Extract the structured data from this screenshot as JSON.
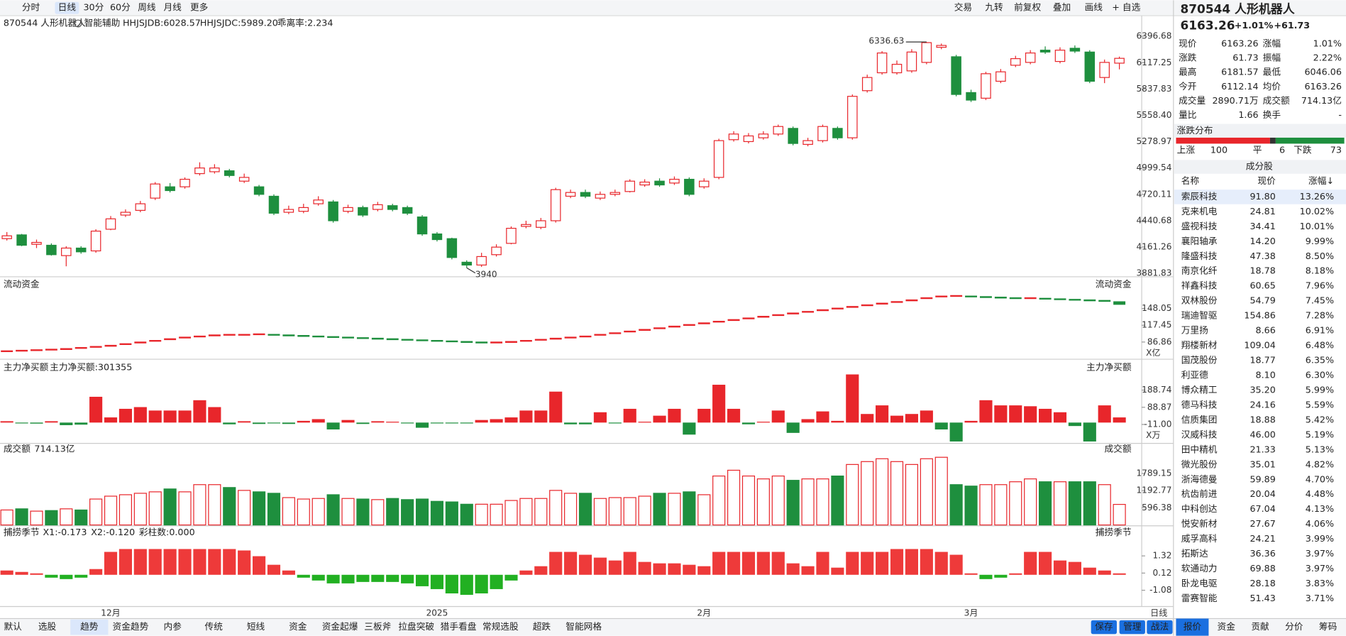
{
  "toolbar": {
    "periods": [
      "分时",
      "日线",
      "30分",
      "60分",
      "周线",
      "月线",
      "更多"
    ],
    "active": "日线",
    "tools": [
      "交易",
      "九转",
      "前复权",
      "叠加",
      "画线",
      "+ 自选"
    ]
  },
  "chart_data": [
    {
      "type": "candlestick",
      "title": "870544 人形机器人",
      "assist": "智能辅助",
      "legend": [
        {
          "text": "HHJSJDB:6028.57",
          "color": "#f08c00"
        },
        {
          "text": "HHJSJDC:5989.20",
          "color": "#e8262b"
        },
        {
          "text": "乖离率:2.234",
          "color": "#f08c00"
        }
      ],
      "up_color": "#e8262b",
      "down_color": "#1e8f3e",
      "open": [
        4250,
        4290,
        4190,
        4180,
        4070,
        4150,
        4120,
        4350,
        4500,
        4550,
        4680,
        4800,
        4800,
        4940,
        4960,
        4970,
        4860,
        4800,
        4700,
        4530,
        4540,
        4620,
        4640,
        4540,
        4580,
        4560,
        4600,
        4580,
        4480,
        4300,
        4250,
        4000,
        3970,
        4080,
        4200,
        4380,
        4370,
        4440,
        4700,
        4740,
        4680,
        4720,
        4750,
        4820,
        4860,
        4840,
        4880,
        4800,
        4900,
        5300,
        5280,
        5320,
        5360,
        5420,
        5250,
        5290,
        5420,
        5320,
        5820,
        6010,
        6010,
        6030,
        6120,
        6280,
        6180,
        5800,
        5740,
        5920,
        6090,
        6120,
        6250,
        6130,
        6270,
        6230,
        5960,
        6112.14
      ],
      "high": [
        4320,
        4300,
        4240,
        4200,
        4170,
        4170,
        4350,
        4490,
        4560,
        4650,
        4850,
        4840,
        4900,
        5060,
        5040,
        4990,
        4940,
        4820,
        4720,
        4600,
        4620,
        4700,
        4660,
        4610,
        4600,
        4640,
        4620,
        4600,
        4500,
        4320,
        4260,
        4020,
        4100,
        4190,
        4380,
        4440,
        4470,
        4790,
        4770,
        4770,
        4750,
        4770,
        4880,
        4880,
        4890,
        4910,
        4900,
        4890,
        5310,
        5390,
        5370,
        5390,
        5460,
        5440,
        5320,
        5460,
        5440,
        5780,
        5990,
        6240,
        6140,
        6260,
        6336.63,
        6320,
        6200,
        5830,
        6020,
        6050,
        6190,
        6250,
        6290,
        6280,
        6300,
        6250,
        6150,
        6181.57
      ],
      "low": [
        4230,
        4170,
        4150,
        4070,
        3956.45,
        4090,
        4100,
        4340,
        4480,
        4530,
        4660,
        4740,
        4780,
        4920,
        4940,
        4900,
        4840,
        4700,
        4500,
        4510,
        4520,
        4600,
        4420,
        4520,
        4480,
        4540,
        4540,
        4500,
        4280,
        4220,
        4030,
        3940,
        3950,
        4060,
        4190,
        4360,
        4350,
        4420,
        4680,
        4680,
        4660,
        4700,
        4740,
        4800,
        4800,
        4820,
        4700,
        4780,
        4880,
        5280,
        5260,
        5300,
        5340,
        5240,
        5230,
        5270,
        5300,
        5300,
        5800,
        5990,
        5990,
        6010,
        6100,
        6260,
        5760,
        5700,
        5720,
        5900,
        6070,
        6100,
        6210,
        6110,
        6220,
        5900,
        5900,
        6046.06
      ],
      "close": [
        4280,
        4180,
        4210,
        4080,
        4150,
        4110,
        4330,
        4460,
        4530,
        4620,
        4830,
        4760,
        4880,
        5000,
        5000,
        4920,
        4900,
        4720,
        4520,
        4560,
        4580,
        4660,
        4440,
        4580,
        4500,
        4610,
        4560,
        4520,
        4300,
        4240,
        4050,
        3970,
        4060,
        4160,
        4360,
        4400,
        4440,
        4770,
        4740,
        4700,
        4720,
        4740,
        4860,
        4850,
        4820,
        4880,
        4720,
        4860,
        5290,
        5360,
        5340,
        5360,
        5440,
        5260,
        5290,
        5440,
        5320,
        5760,
        5960,
        6220,
        6100,
        6230,
        6330,
        6300,
        5780,
        5720,
        6000,
        6020,
        6160,
        6220,
        6230,
        6250,
        6240,
        5920,
        6120,
        6163.26
      ],
      "ylim": [
        3881.83,
        6396.68
      ],
      "yticks": [
        6396.68,
        6117.25,
        5837.83,
        {
          "value": 5558.4,
          "label": "5558.40"
        },
        5278.97,
        4999.54,
        4720.11,
        4440.68,
        4161.26,
        3881.83
      ]
    },
    {
      "type": "line",
      "title": "流动资金",
      "unit": "X亿",
      "up_color": "#e8262b",
      "down_color": "#1e8f3e",
      "values": [
        70,
        71,
        72,
        73,
        74,
        76,
        78,
        80,
        83,
        86,
        89,
        92,
        95,
        97,
        99,
        100,
        100,
        101,
        100,
        99,
        98,
        97,
        96,
        95,
        94,
        93,
        92,
        91,
        90,
        89,
        88,
        87,
        86,
        86,
        87,
        89,
        91,
        93,
        95,
        97,
        100,
        103,
        106,
        109,
        112,
        115,
        118,
        121,
        124,
        127,
        130,
        133,
        136,
        139,
        142,
        145,
        148,
        151,
        154,
        157,
        160,
        163,
        167,
        170,
        171,
        170,
        169,
        168,
        167,
        167,
        166,
        165,
        164,
        163,
        162,
        158
      ],
      "ylim": [
        60,
        180
      ],
      "yticks": [
        148.05,
        117.45,
        86.86
      ]
    },
    {
      "type": "bar",
      "title": "主力净买额",
      "subtitle": "主力净买额:301355",
      "unit": "X万",
      "up_color": "#e8262b",
      "down_color": "#1e8f3e",
      "values": [
        8,
        -5,
        -6,
        8,
        -15,
        -12,
        150,
        30,
        80,
        90,
        70,
        70,
        70,
        130,
        90,
        -10,
        8,
        -8,
        -5,
        -8,
        10,
        20,
        -40,
        15,
        -8,
        8,
        5,
        -5,
        -30,
        -5,
        -5,
        -5,
        15,
        20,
        30,
        70,
        70,
        180,
        -10,
        -10,
        60,
        -5,
        80,
        5,
        40,
        80,
        -70,
        80,
        220,
        80,
        -10,
        5,
        70,
        -60,
        20,
        65,
        10,
        280,
        50,
        100,
        40,
        50,
        70,
        -40,
        -110,
        10,
        130,
        100,
        100,
        95,
        80,
        60,
        -20,
        -110,
        100,
        30
      ],
      "ylim": [
        -120,
        300
      ],
      "yticks": [
        188.74,
        88.87,
        {
          "value": -11,
          "label": "-11.00"
        }
      ]
    },
    {
      "type": "volume",
      "title": "成交额",
      "subtitle": "714.13亿",
      "values": [
        520,
        560,
        480,
        500,
        560,
        520,
        900,
        1000,
        1050,
        1100,
        1150,
        1250,
        1150,
        1400,
        1400,
        1300,
        1200,
        1150,
        1100,
        950,
        900,
        920,
        1050,
        920,
        900,
        880,
        920,
        880,
        900,
        820,
        800,
        720,
        720,
        720,
        850,
        920,
        920,
        1200,
        1100,
        1100,
        920,
        950,
        950,
        1000,
        1100,
        1100,
        1150,
        1050,
        1700,
        1900,
        1700,
        1600,
        1700,
        1550,
        1600,
        1600,
        1700,
        2100,
        2200,
        2300,
        2200,
        2100,
        2300,
        2350,
        1400,
        1350,
        1400,
        1400,
        1500,
        1600,
        1500,
        1500,
        1500,
        1500,
        1400,
        714.13
      ],
      "ylim": [
        0,
        2600
      ],
      "yticks": [
        1789.15,
        1192.77,
        596.38
      ]
    },
    {
      "type": "bar",
      "title": "捕捞季节",
      "up_color": "#ee3a3a",
      "down_color": "#22b022",
      "legend": [
        {
          "text": "X1:-0.173",
          "color": "#f08c00"
        },
        {
          "text": "X2:-0.120",
          "color": "#e020e0"
        },
        {
          "text": "彩柱数:0.000",
          "color": "#1e8f3e"
        }
      ],
      "values": [
        0.3,
        0.2,
        0.1,
        -0.2,
        -0.3,
        -0.2,
        0.4,
        1.6,
        1.8,
        1.8,
        1.8,
        1.8,
        1.8,
        1.8,
        1.8,
        1.8,
        1.7,
        1.3,
        0.7,
        0.3,
        -0.2,
        -0.4,
        -0.6,
        -0.6,
        -0.5,
        -0.5,
        -0.5,
        -0.6,
        -0.8,
        -1.0,
        -1.3,
        -1.4,
        -1.3,
        -1.0,
        -0.4,
        0.3,
        0.6,
        1.6,
        1.6,
        1.4,
        1.2,
        1.0,
        1.6,
        0.9,
        0.8,
        0.8,
        0.7,
        0.6,
        1.6,
        1.6,
        1.6,
        1.6,
        1.6,
        0.8,
        0.6,
        1.6,
        0.5,
        1.6,
        1.6,
        1.6,
        1.8,
        1.8,
        1.8,
        1.6,
        1.4,
        0.1,
        -0.3,
        -0.2,
        0.1,
        1.6,
        1.6,
        1.0,
        0.9,
        0.5,
        0.3,
        0.1
      ],
      "ylim": [
        -1.6,
        2.3
      ],
      "yticks": [
        1.32,
        0.12,
        -1.08
      ],
      "categories": [
        null,
        null,
        null,
        null,
        null,
        null,
        null,
        "12月",
        null,
        null,
        null,
        null,
        null,
        null,
        null,
        null,
        null,
        null,
        null,
        null,
        null,
        null,
        null,
        null,
        null,
        null,
        null,
        null,
        null,
        "2025",
        null,
        null,
        null,
        null,
        null,
        null,
        null,
        null,
        null,
        null,
        null,
        null,
        null,
        null,
        null,
        null,
        null,
        "2月",
        null,
        null,
        null,
        null,
        null,
        null,
        null,
        null,
        null,
        null,
        null,
        null,
        null,
        null,
        null,
        null,
        null,
        "3月",
        null,
        null,
        null,
        null,
        null,
        null,
        null,
        null,
        null,
        null
      ],
      "x_label": "日线"
    }
  ],
  "quote": {
    "title": "870544 人形机器人",
    "price": "6163.26",
    "change_pct": "+1.01%",
    "change": "+61.73",
    "rows": [
      [
        {
          "label": "现价",
          "value": "6163.26",
          "color": "#e8262b"
        },
        {
          "label": "涨幅",
          "value": "1.01%",
          "color": "#e8262b"
        }
      ],
      [
        {
          "label": "涨跌",
          "value": "61.73",
          "color": "#e8262b"
        },
        {
          "label": "振幅",
          "value": "2.22%",
          "color": "#222222"
        }
      ],
      [
        {
          "label": "最高",
          "value": "6181.57",
          "color": "#e8262b"
        },
        {
          "label": "最低",
          "value": "6046.06",
          "color": "#1e8f3e"
        }
      ],
      [
        {
          "label": "今开",
          "value": "6112.14",
          "color": "#e8262b"
        },
        {
          "label": "均价",
          "value": "6163.26",
          "color": "#e8262b"
        }
      ],
      [
        {
          "label": "成交量",
          "value": "2890.71万",
          "color": "#222222"
        },
        {
          "label": "成交额",
          "value": "714.13亿",
          "color": "#222222"
        }
      ],
      [
        {
          "label": "量比",
          "value": "1.66",
          "color": "#222222"
        },
        {
          "label": "换手",
          "value": "-",
          "color": "#222222"
        }
      ]
    ]
  },
  "distribution": {
    "title": "涨跌分布",
    "up_label": "上涨",
    "up": 100,
    "flat_label": "平",
    "flat": 6,
    "down_label": "下跌",
    "down": 73
  },
  "constituents": {
    "title": "成分股",
    "columns": [
      "名称",
      "现价",
      "涨幅↓"
    ],
    "rows": [
      {
        "name": "索辰科技",
        "price": "91.80",
        "change": "13.26%",
        "color": "#222222"
      },
      {
        "name": "克来机电",
        "price": "24.81",
        "change": "10.02%",
        "color": "#222222"
      },
      {
        "name": "盛视科技",
        "price": "34.41",
        "change": "10.01%",
        "color": "#1a5fd0"
      },
      {
        "name": "襄阳轴承",
        "price": "14.20",
        "change": "9.99%",
        "color": "#1a5fd0"
      },
      {
        "name": "隆盛科技",
        "price": "47.38",
        "change": "8.50%",
        "color": "#222222"
      },
      {
        "name": "南京化纤",
        "price": "18.78",
        "change": "8.18%",
        "color": "#1a5fd0"
      },
      {
        "name": "祥鑫科技",
        "price": "60.65",
        "change": "7.96%",
        "color": "#1a5fd0"
      },
      {
        "name": "双林股份",
        "price": "54.79",
        "change": "7.45%",
        "color": "#1a5fd0"
      },
      {
        "name": "瑞迪智驱",
        "price": "154.86",
        "change": "7.28%",
        "color": "#222222"
      },
      {
        "name": "万里扬",
        "price": "8.66",
        "change": "6.91%",
        "color": "#222222"
      },
      {
        "name": "翔楼新材",
        "price": "109.04",
        "change": "6.48%",
        "color": "#222222"
      },
      {
        "name": "国茂股份",
        "price": "18.77",
        "change": "6.35%",
        "color": "#222222"
      },
      {
        "name": "利亚德",
        "price": "8.10",
        "change": "6.30%",
        "color": "#1a5fd0"
      },
      {
        "name": "博众精工",
        "price": "35.20",
        "change": "5.99%",
        "color": "#222222"
      },
      {
        "name": "德马科技",
        "price": "24.16",
        "change": "5.59%",
        "color": "#222222"
      },
      {
        "name": "信质集团",
        "price": "18.88",
        "change": "5.42%",
        "color": "#1a5fd0"
      },
      {
        "name": "汉威科技",
        "price": "46.00",
        "change": "5.19%",
        "color": "#1a5fd0"
      },
      {
        "name": "田中精机",
        "price": "21.33",
        "change": "5.13%",
        "color": "#1a5fd0"
      },
      {
        "name": "微光股份",
        "price": "35.01",
        "change": "4.82%",
        "color": "#222222"
      },
      {
        "name": "浙海德曼",
        "price": "59.89",
        "change": "4.70%",
        "color": "#222222"
      },
      {
        "name": "杭齿前进",
        "price": "20.04",
        "change": "4.48%",
        "color": "#1a5fd0"
      },
      {
        "name": "中科创达",
        "price": "67.04",
        "change": "4.13%",
        "color": "#1a5fd0"
      },
      {
        "name": "悦安新材",
        "price": "27.67",
        "change": "4.06%",
        "color": "#222222"
      },
      {
        "name": "威孚高科",
        "price": "24.21",
        "change": "3.99%",
        "color": "#e020a0"
      },
      {
        "name": "拓斯达",
        "price": "36.36",
        "change": "3.97%",
        "color": "#1a5fd0"
      },
      {
        "name": "软通动力",
        "price": "69.88",
        "change": "3.97%",
        "color": "#1a5fd0"
      },
      {
        "name": "卧龙电驱",
        "price": "28.18",
        "change": "3.83%",
        "color": "#1a5fd0"
      },
      {
        "name": "雷赛智能",
        "price": "51.43",
        "change": "3.71%",
        "color": "#1a5fd0"
      }
    ]
  },
  "side_tabs": {
    "items": [
      "报价",
      "资金",
      "贡献",
      "分价",
      "筹码"
    ],
    "active": "报价"
  },
  "bottom_tabs": {
    "items": [
      "默认",
      "选股",
      "趋势",
      "资金趋势",
      "内参",
      "传统",
      "短线",
      "资金",
      "资金起爆",
      "三板斧",
      "拉盘突破",
      "猎手看盘",
      "常规选股",
      "超跌",
      "智能网格"
    ],
    "active": "趋势",
    "actions": [
      "保存",
      "管理",
      "战法"
    ]
  }
}
